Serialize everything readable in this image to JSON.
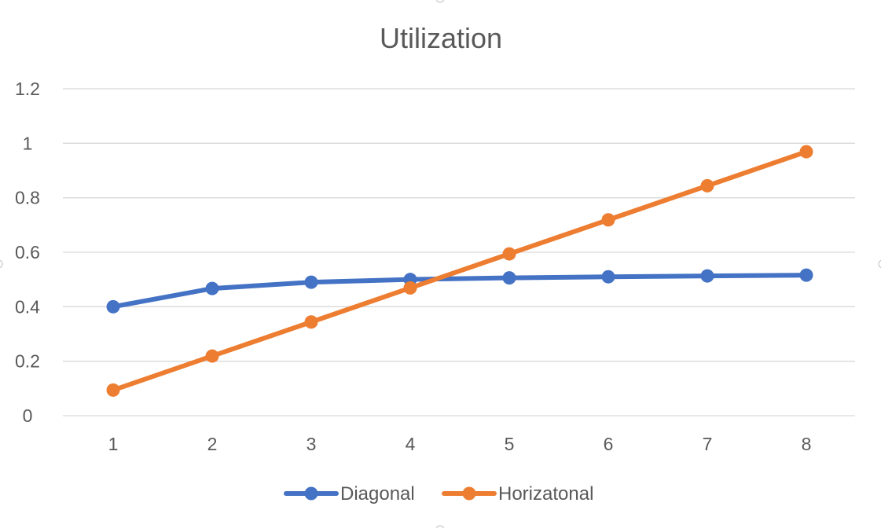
{
  "colors": {
    "background": "#ffffff",
    "grid": "#d9d9d9",
    "text": "#595959"
  },
  "chart_data": {
    "type": "line",
    "title": "Utilization",
    "xlabel": "",
    "ylabel": "",
    "categories": [
      "1",
      "2",
      "3",
      "4",
      "5",
      "6",
      "7",
      "8"
    ],
    "ylim": [
      0,
      1.2
    ],
    "yticks": [
      "0",
      "0.2",
      "0.4",
      "0.6",
      "0.8",
      "1",
      "1.2"
    ],
    "grid": true,
    "legend_position": "bottom",
    "series": [
      {
        "name": "Diagonal",
        "color": "#4472c4",
        "values": [
          0.4,
          0.467,
          0.49,
          0.5,
          0.506,
          0.51,
          0.513,
          0.516
        ]
      },
      {
        "name": "Horizatonal",
        "color": "#ed7d31",
        "values": [
          0.094,
          0.219,
          0.344,
          0.469,
          0.594,
          0.719,
          0.844,
          0.969
        ]
      }
    ]
  }
}
